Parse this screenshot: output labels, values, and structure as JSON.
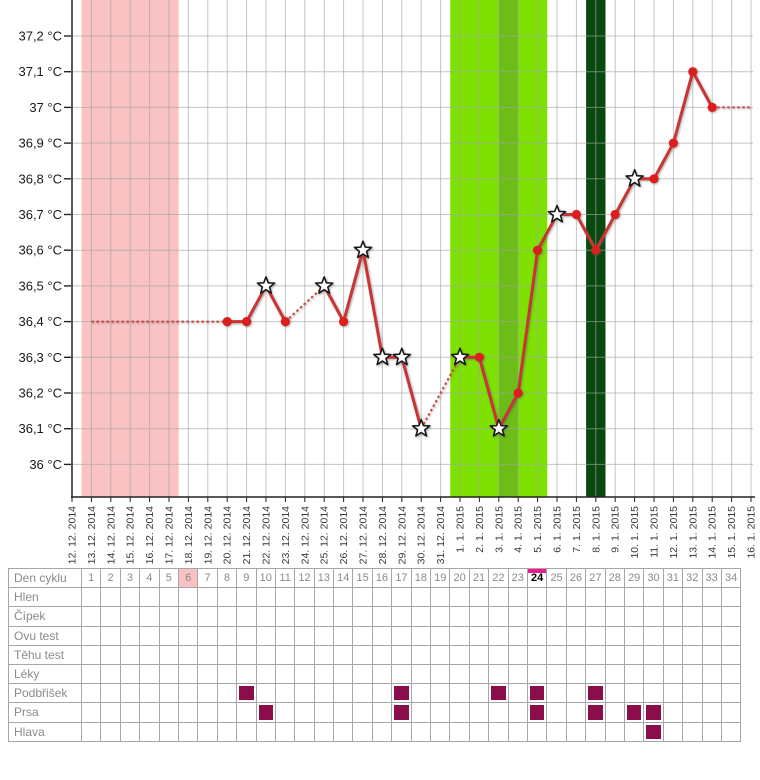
{
  "chart_data": {
    "type": "line",
    "unit": "°C",
    "grid": true,
    "legend": false,
    "ylim": [
      36.0,
      37.3
    ],
    "y_ticks": [
      "37,2 °C",
      "37,1 °C",
      "37 °C",
      "36,9 °C",
      "36,8 °C",
      "36,7 °C",
      "36,6 °C",
      "36,5 °C",
      "36,4 °C",
      "36,3 °C",
      "36,2 °C",
      "36,1 °C",
      "36 °C"
    ],
    "x_dates": [
      "12. 12. 2014",
      "13. 12. 2014",
      "14. 12. 2014",
      "15. 12. 2014",
      "16. 12. 2014",
      "17. 12. 2014",
      "18. 12. 2014",
      "19. 12. 2014",
      "20. 12. 2014",
      "21. 12. 2014",
      "22. 12. 2014",
      "23. 12. 2014",
      "24. 12. 2014",
      "25. 12. 2014",
      "26. 12. 2014",
      "27. 12. 2014",
      "28. 12. 2014",
      "29. 12. 2014",
      "30. 12. 2014",
      "31. 12. 2014",
      "1. 1. 2015",
      "2. 1. 2015",
      "3. 1. 2015",
      "4. 1. 2015",
      "5. 1. 2015",
      "6. 1. 2015",
      "7. 1. 2015",
      "8. 1. 2015",
      "9. 1. 2015",
      "10. 1. 2015",
      "11. 1. 2015",
      "12. 1. 2015",
      "13. 1. 2015",
      "14. 1. 2015",
      "15. 1. 2015",
      "16. 1. 2015"
    ],
    "line_color": "#c93535",
    "dotted_color": "#cd4444",
    "marker_color": "#dc1e1e",
    "grid_color": "rgba(165,165,165,0.65)",
    "axis_color": "#222222",
    "series": [
      {
        "name": "basal-temperature",
        "points": [
          {
            "date": "20. 12. 2014",
            "temp": 36.4,
            "marker": "dot"
          },
          {
            "date": "21. 12. 2014",
            "temp": 36.4,
            "marker": "dot"
          },
          {
            "date": "22. 12. 2014",
            "temp": 36.5,
            "marker": "star"
          },
          {
            "date": "23. 12. 2014",
            "temp": 36.4,
            "marker": "dot"
          },
          {
            "date": "25. 12. 2014",
            "temp": 36.5,
            "marker": "star"
          },
          {
            "date": "26. 12. 2014",
            "temp": 36.4,
            "marker": "dot"
          },
          {
            "date": "27. 12. 2014",
            "temp": 36.6,
            "marker": "star"
          },
          {
            "date": "28. 12. 2014",
            "temp": 36.3,
            "marker": "star"
          },
          {
            "date": "29. 12. 2014",
            "temp": 36.3,
            "marker": "star"
          },
          {
            "date": "30. 12. 2014",
            "temp": 36.1,
            "marker": "star"
          },
          {
            "date": "1. 1. 2015",
            "temp": 36.3,
            "marker": "star"
          },
          {
            "date": "2. 1. 2015",
            "temp": 36.3,
            "marker": "dot"
          },
          {
            "date": "3. 1. 2015",
            "temp": 36.1,
            "marker": "star"
          },
          {
            "date": "4. 1. 2015",
            "temp": 36.2,
            "marker": "dot"
          },
          {
            "date": "5. 1. 2015",
            "temp": 36.6,
            "marker": "dot"
          },
          {
            "date": "6. 1. 2015",
            "temp": 36.7,
            "marker": "star"
          },
          {
            "date": "7. 1. 2015",
            "temp": 36.7,
            "marker": "dot"
          },
          {
            "date": "8. 1. 2015",
            "temp": 36.6,
            "marker": "dot"
          },
          {
            "date": "9. 1. 2015",
            "temp": 36.7,
            "marker": "dot"
          },
          {
            "date": "10. 1. 2015",
            "temp": 36.8,
            "marker": "star"
          },
          {
            "date": "11. 1. 2015",
            "temp": 36.8,
            "marker": "dot"
          },
          {
            "date": "12. 1. 2015",
            "temp": 36.9,
            "marker": "dot"
          },
          {
            "date": "13. 1. 2015",
            "temp": 37.1,
            "marker": "dot"
          },
          {
            "date": "14. 1. 2015",
            "temp": 37.0,
            "marker": "dot"
          }
        ]
      }
    ],
    "extensions": [
      {
        "name": "leading-baseline",
        "style": "dotted",
        "from": "13. 12. 2014",
        "to": "20. 12. 2014",
        "temp": 36.4
      },
      {
        "name": "trailing-projection",
        "style": "dotted",
        "from": "14. 1. 2015",
        "to": "16. 1. 2015",
        "temp": 37.0
      }
    ],
    "regions": [
      {
        "name": "menstruation",
        "from": "13. 12. 2014",
        "to": "17. 12. 2014",
        "span": "cells",
        "color": "#f9c3c3"
      },
      {
        "name": "fertile-window",
        "from": "1. 1. 2015",
        "to": "5. 1. 2015",
        "span": "cells",
        "color": "#7de201"
      },
      {
        "name": "fertile-peak",
        "from": "3. 1. 2015",
        "to": "4. 1. 2015",
        "span": "ticks",
        "color": "#6cbd17"
      },
      {
        "name": "ovulation-day",
        "from": "8. 1. 2015",
        "to": "8. 1. 2015",
        "span": "cells",
        "color": "#07490e"
      }
    ]
  },
  "table": {
    "day_row_label": "Den cyklu",
    "day_numbers": [
      1,
      2,
      3,
      4,
      5,
      6,
      7,
      8,
      9,
      10,
      11,
      12,
      13,
      14,
      15,
      16,
      17,
      18,
      19,
      20,
      21,
      22,
      23,
      24,
      25,
      26,
      27,
      28,
      29,
      30,
      31,
      32,
      33,
      34
    ],
    "highlighted_pink_day": 6,
    "highlighted_current_day": 24,
    "symptom_rows": [
      "Hlen",
      "Čípek",
      "Ovu test",
      "Těhu test",
      "Léky",
      "Podbřišek",
      "Prsa",
      "Hlava"
    ],
    "marked_days": {
      "Podbřišek": [
        9,
        17,
        22,
        24,
        27
      ],
      "Prsa": [
        10,
        17,
        24,
        27,
        29,
        30
      ],
      "Hlava": [
        30
      ]
    },
    "mark_color": "#8b0d4a",
    "current_day_accent": "#ec1a8e",
    "pink_day_color": "#f8c2c2"
  }
}
